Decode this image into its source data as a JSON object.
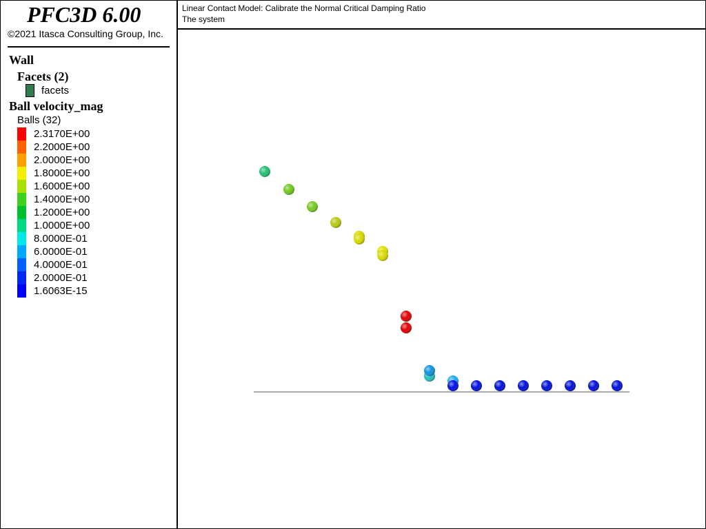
{
  "header": {
    "title": "PFC3D 6.00",
    "copyright": "©2021 Itasca Consulting Group, Inc."
  },
  "legend": {
    "wall": "Wall",
    "facets_group": "Facets (2)",
    "facets": "facets",
    "ball_group": "Ball velocity_mag",
    "balls": "Balls (32)",
    "scale": [
      "2.3170E+00",
      "2.2000E+00",
      "2.0000E+00",
      "1.8000E+00",
      "1.6000E+00",
      "1.4000E+00",
      "1.2000E+00",
      "1.0000E+00",
      "8.0000E-01",
      "6.0000E-01",
      "4.0000E-01",
      "2.0000E-01",
      "1.6063E-15"
    ]
  },
  "view": {
    "title": "Linear Contact Model: Calibrate the Normal Critical Damping Ratio",
    "subtitle": "The system"
  }
}
